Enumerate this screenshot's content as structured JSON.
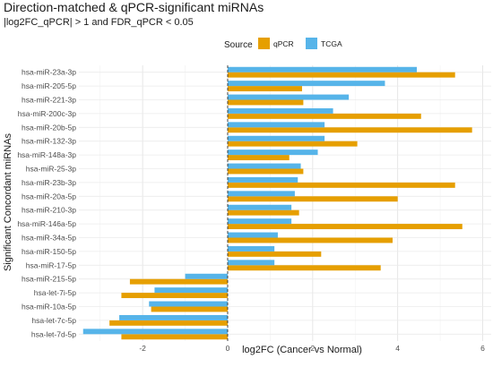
{
  "chart_data": {
    "type": "bar",
    "orientation": "horizontal",
    "title": "Direction-matched & qPCR-significant miRNAs",
    "subtitle": "|log2FC_qPCR| > 1 and FDR_qPCR < 0.05",
    "xlabel": "log2FC (Cancer vs Normal)",
    "ylabel": "Significant Concordant miRNAs",
    "xlim": [
      -3.5,
      6.2
    ],
    "xticks": [
      -2,
      0,
      2,
      4,
      6
    ],
    "grid": true,
    "legend": {
      "title": "Source",
      "position": "top"
    },
    "categories": [
      "hsa-miR-23a-3p",
      "hsa-miR-205-5p",
      "hsa-miR-221-3p",
      "hsa-miR-200c-3p",
      "hsa-miR-20b-5p",
      "hsa-miR-132-3p",
      "hsa-miR-148a-3p",
      "hsa-miR-25-3p",
      "hsa-miR-23b-3p",
      "hsa-miR-20a-5p",
      "hsa-miR-210-3p",
      "hsa-miR-146a-5p",
      "hsa-miR-34a-5p",
      "hsa-miR-150-5p",
      "hsa-miR-17-5p",
      "hsa-miR-215-5p",
      "hsa-let-7i-5p",
      "hsa-miR-10a-5p",
      "hsa-let-7c-5p",
      "hsa-let-7d-5p"
    ],
    "series": [
      {
        "name": "qPCR",
        "color": "#E69F00",
        "values": [
          5.35,
          1.75,
          1.78,
          4.55,
          5.75,
          3.05,
          1.45,
          1.78,
          5.35,
          4.0,
          1.68,
          5.52,
          3.88,
          2.2,
          3.6,
          -2.3,
          -2.5,
          -1.8,
          -2.78,
          -2.5
        ]
      },
      {
        "name": "TCGA",
        "color": "#56B4E9",
        "values": [
          4.45,
          3.7,
          2.85,
          2.48,
          2.28,
          2.28,
          2.12,
          1.72,
          1.65,
          1.58,
          1.5,
          1.5,
          1.18,
          1.1,
          1.1,
          -1.0,
          -1.72,
          -1.85,
          -2.55,
          -3.4
        ]
      }
    ]
  }
}
